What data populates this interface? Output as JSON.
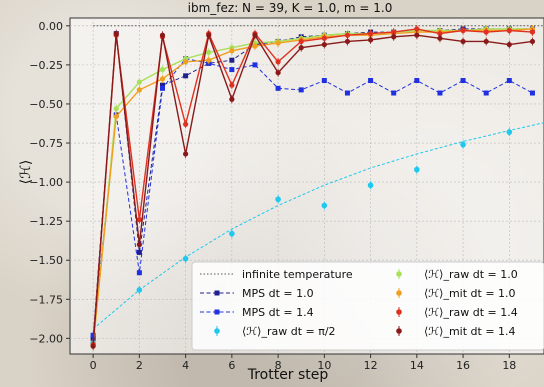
{
  "chart_data": {
    "type": "line",
    "title": "ibm_fez: N = 39, K = 1.0, m = 1.0",
    "xlabel": "Trotter step",
    "ylabel": "⟨ℋ⟩",
    "xlim": [
      -1,
      19.5
    ],
    "ylim": [
      -2.1,
      0.05
    ],
    "x_ticks": [
      "0",
      "2",
      "4",
      "6",
      "8",
      "10",
      "12",
      "14",
      "16",
      "18"
    ],
    "y_ticks": [
      "0.00",
      "−0.25",
      "−0.50",
      "−0.75",
      "−1.00",
      "−1.25",
      "−1.50",
      "−1.75",
      "−2.00"
    ],
    "grid": true,
    "legend_position": "bottom-right",
    "series": [
      {
        "name": "infinite temperature",
        "style": "dotted-line",
        "color": "#555555",
        "x": [
          0,
          19.5
        ],
        "y": [
          0.0,
          0.0
        ]
      },
      {
        "name": "MPS dt = 1.0",
        "style": "dashed-line-square",
        "color": "#1f1f8f",
        "x": [
          0,
          1,
          2,
          3,
          4,
          5,
          6,
          7,
          8,
          9,
          10,
          11,
          12,
          13,
          14,
          15,
          16,
          17,
          18,
          19
        ],
        "y": [
          -2.0,
          -0.05,
          -1.45,
          -0.38,
          -0.32,
          -0.24,
          -0.22,
          -0.12,
          -0.1,
          -0.07,
          -0.06,
          -0.05,
          -0.04,
          -0.04,
          -0.03,
          -0.03,
          -0.02,
          -0.02,
          -0.02,
          -0.02
        ]
      },
      {
        "name": "MPS dt = 1.4",
        "style": "dashed-line-square",
        "color": "#2030e0",
        "x": [
          0,
          1,
          2,
          3,
          4,
          5,
          6,
          7,
          8,
          9,
          10,
          11,
          12,
          13,
          14,
          15,
          16,
          17,
          18,
          19
        ],
        "y": [
          -1.98,
          -0.57,
          -1.58,
          -0.4,
          -0.21,
          -0.24,
          -0.28,
          -0.25,
          -0.4,
          -0.41,
          -0.35,
          -0.43,
          -0.35,
          -0.43,
          -0.35,
          -0.43,
          -0.35,
          -0.43,
          -0.35,
          -0.43
        ]
      },
      {
        "name": "⟨ℋ⟩_raw dt = π/2",
        "style": "markers-with-fit",
        "color": "#1ec8ee",
        "x": [
          0,
          2,
          4,
          6,
          8,
          10,
          12,
          14,
          16,
          18
        ],
        "y": [
          -2.03,
          -1.69,
          -1.49,
          -1.33,
          -1.11,
          -1.15,
          -1.02,
          -0.92,
          -0.76,
          -0.68
        ],
        "fit_x": [
          0,
          2,
          4,
          6,
          8,
          10,
          12,
          14,
          16,
          18,
          19.5
        ],
        "fit_y": [
          -1.94,
          -1.69,
          -1.48,
          -1.3,
          -1.15,
          -1.02,
          -0.91,
          -0.82,
          -0.74,
          -0.67,
          -0.62
        ]
      },
      {
        "name": "⟨ℋ⟩_raw dt = 1.0",
        "style": "line-markers",
        "color": "#a8e05a",
        "x": [
          0,
          1,
          2,
          3,
          4,
          5,
          6,
          7,
          8,
          9,
          10,
          11,
          12,
          13,
          14,
          15,
          16,
          17,
          18,
          19
        ],
        "y": [
          -2.05,
          -0.53,
          -0.36,
          -0.28,
          -0.21,
          -0.17,
          -0.14,
          -0.11,
          -0.1,
          -0.08,
          -0.06,
          -0.05,
          -0.05,
          -0.04,
          -0.03,
          -0.03,
          -0.03,
          -0.02,
          -0.02,
          -0.02
        ]
      },
      {
        "name": "⟨ℋ⟩_mit dt = 1.0",
        "style": "line-markers",
        "color": "#f0a020",
        "x": [
          0,
          1,
          2,
          3,
          4,
          5,
          6,
          7,
          8,
          9,
          10,
          11,
          12,
          13,
          14,
          15,
          16,
          17,
          18,
          19
        ],
        "y": [
          -2.04,
          -0.58,
          -0.41,
          -0.34,
          -0.23,
          -0.22,
          -0.16,
          -0.13,
          -0.11,
          -0.09,
          -0.07,
          -0.06,
          -0.06,
          -0.05,
          -0.04,
          -0.04,
          -0.03,
          -0.03,
          -0.03,
          -0.02
        ]
      },
      {
        "name": "⟨ℋ⟩_raw dt = 1.4",
        "style": "line-markers",
        "color": "#e03020",
        "x": [
          0,
          1,
          2,
          3,
          4,
          5,
          6,
          7,
          8,
          9,
          10,
          11,
          12,
          13,
          14,
          15,
          16,
          17,
          18,
          19
        ],
        "y": [
          -2.04,
          -0.06,
          -1.24,
          -0.07,
          -0.63,
          -0.05,
          -0.38,
          -0.05,
          -0.23,
          -0.1,
          -0.08,
          -0.06,
          -0.05,
          -0.04,
          -0.02,
          -0.05,
          -0.03,
          -0.04,
          -0.03,
          -0.04
        ]
      },
      {
        "name": "⟨ℋ⟩_mit dt = 1.4",
        "style": "line-markers",
        "color": "#8a1a1a",
        "x": [
          0,
          1,
          2,
          3,
          4,
          5,
          6,
          7,
          8,
          9,
          10,
          11,
          12,
          13,
          14,
          15,
          16,
          17,
          18,
          19
        ],
        "y": [
          -2.05,
          -0.05,
          -1.4,
          -0.06,
          -0.82,
          -0.06,
          -0.47,
          -0.06,
          -0.3,
          -0.14,
          -0.12,
          -0.1,
          -0.09,
          -0.07,
          -0.06,
          -0.08,
          -0.1,
          -0.1,
          -0.12,
          -0.1
        ]
      }
    ],
    "legend_col1": [
      "infinite temperature",
      "MPS dt = 1.0",
      "MPS dt = 1.4",
      "⟨ℋ⟩_raw dt = π/2"
    ],
    "legend_col2": [
      "⟨ℋ⟩_raw dt = 1.0",
      "⟨ℋ⟩_mit dt = 1.0",
      "⟨ℋ⟩_raw dt = 1.4",
      "⟨ℋ⟩_mit dt = 1.4"
    ]
  }
}
